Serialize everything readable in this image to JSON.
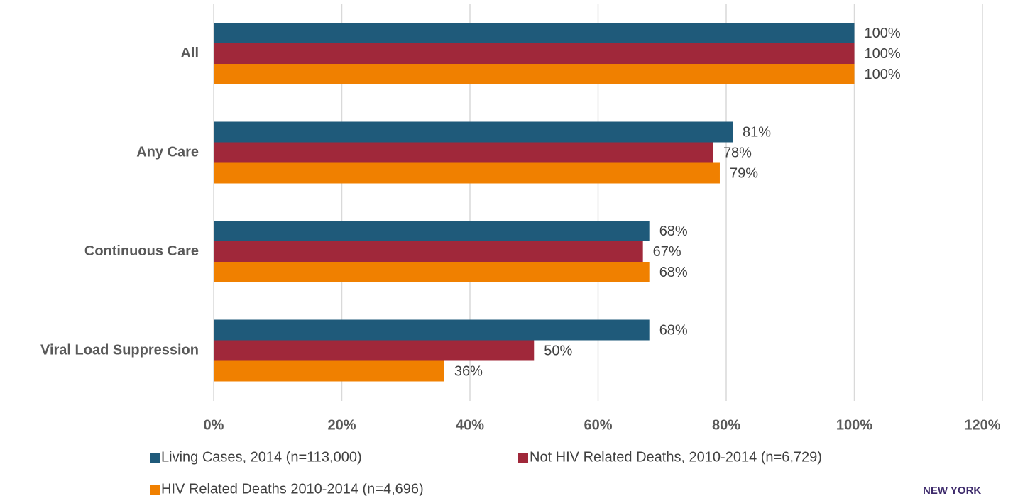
{
  "chart_data": {
    "type": "hbar",
    "categories": [
      "All",
      "Any Care",
      "Continuous Care",
      "Viral Load Suppression"
    ],
    "series": [
      {
        "name": "Living Cases, 2014 (n=113,000)",
        "color": "#1f5a7a",
        "values": [
          100,
          81,
          68,
          68
        ],
        "value_labels": [
          "100%",
          "81%",
          "68%",
          "68%"
        ]
      },
      {
        "name": "Not HIV Related Deaths, 2010-2014 (n=6,729)",
        "color": "#a0283a",
        "values": [
          100,
          78,
          67,
          50
        ],
        "value_labels": [
          "100%",
          "78%",
          "67%",
          "50%"
        ]
      },
      {
        "name": "HIV Related Deaths 2010-2014 (n=4,696)",
        "color": "#f08000",
        "values": [
          100,
          79,
          68,
          36
        ],
        "value_labels": [
          "100%",
          "79%",
          "68%",
          "36%"
        ]
      }
    ],
    "xlim": [
      0,
      120
    ],
    "xticks": [
      {
        "value": 0,
        "label": "0%"
      },
      {
        "value": 20,
        "label": "20%"
      },
      {
        "value": 40,
        "label": "40%"
      },
      {
        "value": 60,
        "label": "60%"
      },
      {
        "value": 80,
        "label": "80%"
      },
      {
        "value": 100,
        "label": "100%"
      },
      {
        "value": 120,
        "label": "120%"
      }
    ],
    "grid": true,
    "legend": "bottom",
    "logo": "NEW YORK"
  }
}
